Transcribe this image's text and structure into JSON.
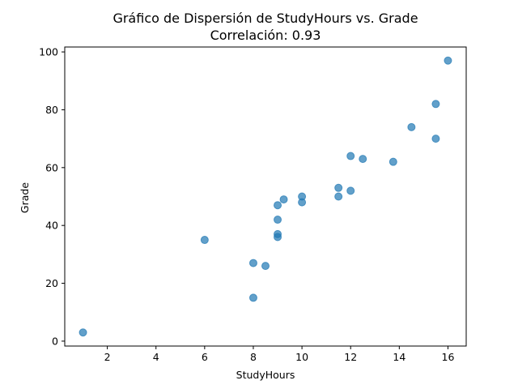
{
  "chart_data": {
    "type": "scatter",
    "title": "Gráfico de Dispersión de StudyHours vs. Grade",
    "subtitle": "Correlación: 0.93",
    "xlabel": "StudyHours",
    "ylabel": "Grade",
    "xlim": [
      0.25,
      16.75
    ],
    "ylim": [
      -1.7,
      101.7
    ],
    "xticks": [
      2,
      4,
      6,
      8,
      10,
      12,
      14,
      16
    ],
    "yticks": [
      0,
      20,
      40,
      60,
      80,
      100
    ],
    "grid": false,
    "point_color": "#1f77b4",
    "points": [
      {
        "x": 1,
        "y": 3
      },
      {
        "x": 6,
        "y": 35
      },
      {
        "x": 8,
        "y": 27
      },
      {
        "x": 8,
        "y": 15
      },
      {
        "x": 8.5,
        "y": 26
      },
      {
        "x": 9,
        "y": 47
      },
      {
        "x": 9,
        "y": 42
      },
      {
        "x": 9,
        "y": 37
      },
      {
        "x": 9,
        "y": 36
      },
      {
        "x": 9.25,
        "y": 49
      },
      {
        "x": 10,
        "y": 50
      },
      {
        "x": 10,
        "y": 48
      },
      {
        "x": 11.5,
        "y": 53
      },
      {
        "x": 11.5,
        "y": 50
      },
      {
        "x": 12,
        "y": 64
      },
      {
        "x": 12,
        "y": 52
      },
      {
        "x": 12.5,
        "y": 63
      },
      {
        "x": 13.75,
        "y": 62
      },
      {
        "x": 14.5,
        "y": 74
      },
      {
        "x": 15.5,
        "y": 82
      },
      {
        "x": 15.5,
        "y": 70
      },
      {
        "x": 16,
        "y": 97
      }
    ]
  }
}
